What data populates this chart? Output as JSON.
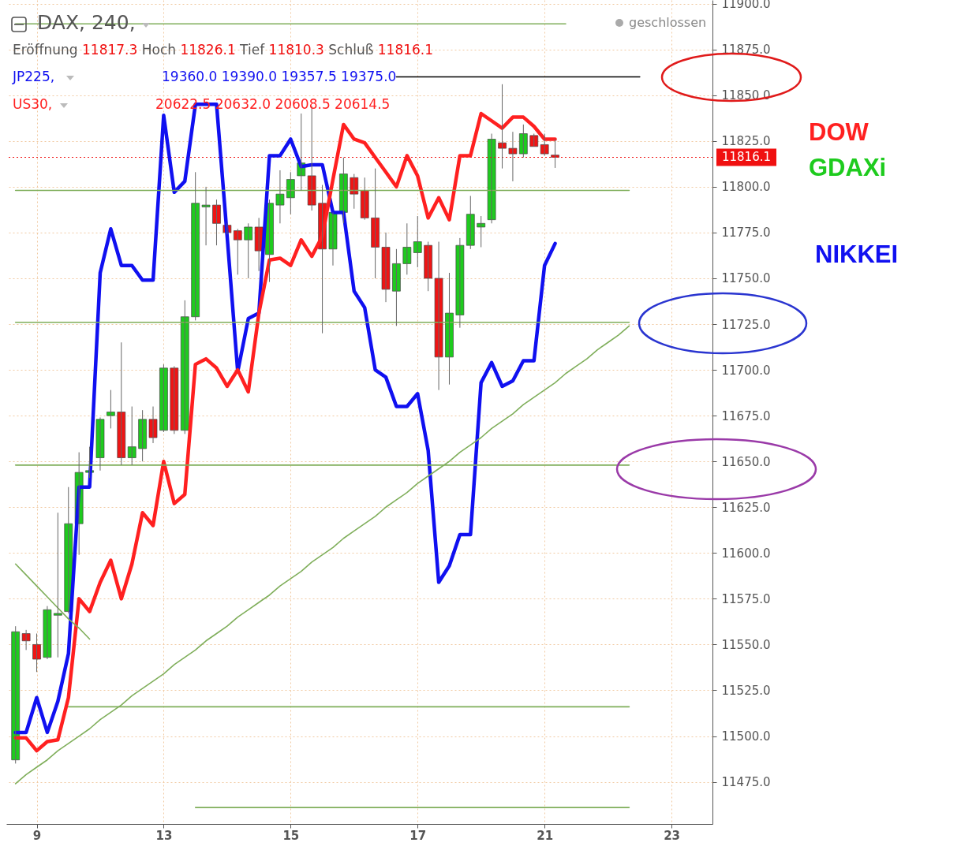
{
  "chart_data": {
    "type": "candlestick",
    "title": "DAX, 240,",
    "categories": [
      null,
      null,
      "9",
      null,
      null,
      null,
      null,
      null,
      null,
      null,
      null,
      null,
      null,
      null,
      "13",
      null,
      null,
      null,
      null,
      null,
      null,
      null,
      null,
      null,
      null,
      null,
      "15",
      null,
      null,
      null,
      null,
      null,
      null,
      null,
      null,
      null,
      null,
      null,
      "17",
      null,
      null,
      null,
      null,
      null,
      null,
      null,
      null,
      null,
      null,
      null,
      "21",
      null,
      null,
      null,
      null,
      null,
      null,
      null,
      null,
      null,
      null,
      null,
      "23",
      null,
      null,
      null
    ],
    "ohlc": [
      [
        11487,
        11560,
        11485,
        11557
      ],
      [
        11556,
        11558,
        11547,
        11552
      ],
      [
        11550,
        11556,
        11535,
        11542
      ],
      [
        11543,
        11571,
        11542,
        11569
      ],
      [
        11566,
        11622,
        11543,
        11567
      ],
      [
        11568,
        11636,
        11567,
        11616
      ],
      [
        11616,
        11655,
        11599,
        11644
      ],
      [
        11644,
        11658,
        11641,
        11645
      ],
      [
        11652,
        11674,
        11645,
        11673
      ],
      [
        11675,
        11689,
        11668,
        11677
      ],
      [
        11677,
        11715,
        11648,
        11652
      ],
      [
        11652,
        11680,
        11648,
        11658
      ],
      [
        11657,
        11678,
        11650,
        11673
      ],
      [
        11673,
        11680,
        11660,
        11663
      ],
      [
        11667,
        11703,
        11666,
        11701
      ],
      [
        11701,
        11702,
        11665,
        11667
      ],
      [
        11667,
        11738,
        11665,
        11729
      ],
      [
        11729,
        11808,
        11727,
        11791
      ],
      [
        11789,
        11800,
        11768,
        11790
      ],
      [
        11790,
        11793,
        11768,
        11780
      ],
      [
        11779,
        11780,
        11774,
        11775
      ],
      [
        11776,
        11777,
        11752,
        11771
      ],
      [
        11771,
        11780,
        11750,
        11778
      ],
      [
        11778,
        11783,
        11754,
        11765
      ],
      [
        11763,
        11793,
        11748,
        11791
      ],
      [
        11790,
        11809,
        11780,
        11796
      ],
      [
        11794,
        11808,
        11785,
        11804
      ],
      [
        11806,
        11840,
        11798,
        11813
      ],
      [
        11806,
        11844,
        11787,
        11790
      ],
      [
        11791,
        11801,
        11720,
        11766
      ],
      [
        11766,
        11786,
        11757,
        11786
      ],
      [
        11786,
        11816,
        11780,
        11807
      ],
      [
        11805,
        11807,
        11788,
        11796
      ],
      [
        11798,
        11805,
        11782,
        11783
      ],
      [
        11783,
        11810,
        11750,
        11767
      ],
      [
        11767,
        11775,
        11737,
        11744
      ],
      [
        11743,
        11766,
        11724,
        11758
      ],
      [
        11758,
        11780,
        11752,
        11767
      ],
      [
        11764,
        11784,
        11756,
        11770
      ],
      [
        11768,
        11770,
        11743,
        11750
      ],
      [
        11750,
        11770,
        11689,
        11707
      ],
      [
        11707,
        11753,
        11692,
        11731
      ],
      [
        11730,
        11772,
        11723,
        11768
      ],
      [
        11768,
        11795,
        11766,
        11785
      ],
      [
        11778,
        11784,
        11767,
        11780
      ],
      [
        11782,
        11829,
        11780,
        11826
      ],
      [
        11824,
        11856,
        11810,
        11821
      ],
      [
        11821,
        11830,
        11803,
        11818
      ],
      [
        11818,
        11834,
        11816,
        11829
      ],
      [
        11828,
        11829,
        11822,
        11822
      ],
      [
        11823,
        11829,
        11817,
        11818
      ],
      [
        11817.3,
        11826.1,
        11810.3,
        11816.1
      ],
      null,
      null,
      null,
      null,
      null,
      null,
      null,
      null,
      null,
      null,
      null,
      null,
      null,
      null
    ],
    "series": [
      {
        "name": "JP225,",
        "type": "line",
        "color": "#1010f0",
        "values": [
          11502,
          11502,
          11521,
          11502,
          11519,
          11545,
          11636,
          11636,
          11753,
          11777,
          11757,
          11757,
          11749,
          11749,
          11839,
          11797,
          11803,
          11845,
          11845,
          11845,
          11773,
          11699,
          11728,
          11731,
          11817,
          11817,
          11826,
          11811,
          11812,
          11812,
          11786,
          11786,
          11743,
          11734,
          11700,
          11696,
          11680,
          11680,
          11687,
          11656,
          11584,
          11593,
          11610,
          11610,
          11693,
          11704,
          11691,
          11694,
          11705,
          11705,
          11757,
          11769,
          null,
          null,
          null,
          null,
          null,
          null,
          null,
          null,
          null,
          null,
          null,
          null,
          null,
          null
        ]
      },
      {
        "name": "US30,",
        "type": "line",
        "color": "#ff2020",
        "values": [
          11499,
          11499,
          11492,
          11497,
          11498,
          11521,
          11575,
          11568,
          11584,
          11596,
          11575,
          11594,
          11622,
          11615,
          11650,
          11627,
          11632,
          11703,
          11706,
          11701,
          11691,
          11700,
          11688,
          11731,
          11760,
          11761,
          11757,
          11771,
          11762,
          11773,
          11804,
          11834,
          11826,
          11824,
          11816,
          11808,
          11800,
          11817,
          11806,
          11783,
          11794,
          11782,
          11817,
          11817,
          11840,
          11836,
          11832,
          11838,
          11838,
          11833,
          11826,
          11826,
          null,
          null,
          null,
          null,
          null,
          null,
          null,
          null,
          null,
          null,
          null,
          null,
          null,
          null
        ]
      },
      {
        "type": "line",
        "color": "#7fae5a",
        "values": [
          11889,
          11889,
          11889,
          11889,
          11889,
          11889,
          11889,
          11889,
          11889,
          11889,
          11889,
          11889,
          11889,
          11889,
          11889,
          11889,
          11889,
          11889,
          11889,
          11889,
          11889,
          11889,
          11889,
          11889,
          11889,
          11889,
          11889,
          11889,
          11889,
          11889,
          11889,
          11889,
          11889,
          11889,
          11889,
          11889,
          11889,
          11889,
          11889,
          11889,
          11889,
          11889,
          11889,
          11889,
          11889,
          11889,
          11889,
          11889,
          11889,
          11889,
          11889,
          11889,
          11889,
          null,
          null,
          null,
          null,
          null,
          null,
          null,
          null,
          null,
          null,
          null,
          null,
          null
        ]
      },
      {
        "type": "line",
        "color": "#000000",
        "values": [
          null,
          null,
          null,
          null,
          null,
          null,
          null,
          null,
          null,
          null,
          null,
          null,
          null,
          null,
          null,
          null,
          null,
          null,
          null,
          null,
          null,
          null,
          null,
          null,
          null,
          null,
          null,
          null,
          null,
          null,
          null,
          null,
          null,
          null,
          null,
          null,
          11860,
          11860,
          11860,
          11860,
          11860,
          11860,
          11860,
          11860,
          11860,
          11860,
          11860,
          11860,
          11860,
          11860,
          11860,
          11860,
          11860,
          11860,
          11860,
          11860,
          11860,
          11860,
          11860,
          11860,
          null,
          null,
          null,
          null,
          null,
          null
        ]
      },
      {
        "type": "line",
        "color": "#7fae5a",
        "values": [
          11798,
          11798,
          11798,
          11798,
          11798,
          11798,
          11798,
          11798,
          11798,
          11798,
          11798,
          11798,
          11798,
          11798,
          11798,
          11798,
          11798,
          11798,
          11798,
          11798,
          11798,
          11798,
          11798,
          11798,
          11798,
          11798,
          11798,
          11798,
          11798,
          11798,
          11798,
          11798,
          11798,
          11798,
          11798,
          11798,
          11798,
          11798,
          11798,
          11798,
          11798,
          11798,
          11798,
          11798,
          11798,
          11798,
          11798,
          11798,
          11798,
          11798,
          11798,
          11798,
          11798,
          11798,
          11798,
          11798,
          11798,
          11798,
          11798,
          null,
          null,
          null,
          null,
          null,
          null,
          null
        ]
      },
      {
        "type": "line",
        "color": "#7fae5a",
        "values": [
          11726,
          11726,
          11726,
          11726,
          11726,
          11726,
          11726,
          11726,
          11726,
          11726,
          11726,
          11726,
          11726,
          11726,
          11726,
          11726,
          11726,
          11726,
          11726,
          11726,
          11726,
          11726,
          11726,
          11726,
          11726,
          11726,
          11726,
          11726,
          11726,
          11726,
          11726,
          11726,
          11726,
          11726,
          11726,
          11726,
          11726,
          11726,
          11726,
          11726,
          11726,
          11726,
          11726,
          11726,
          11726,
          11726,
          11726,
          11726,
          11726,
          11726,
          11726,
          11726,
          11726,
          11726,
          11726,
          11726,
          11726,
          11726,
          11726,
          null,
          null,
          null,
          null,
          null,
          null,
          null
        ]
      },
      {
        "type": "line",
        "color": "#7fae5a",
        "values": [
          11648,
          11648,
          11648,
          11648,
          11648,
          11648,
          11648,
          11648,
          11648,
          11648,
          11648,
          11648,
          11648,
          11648,
          11648,
          11648,
          11648,
          11648,
          11648,
          11648,
          11648,
          11648,
          11648,
          11648,
          11648,
          11648,
          11648,
          11648,
          11648,
          11648,
          11648,
          11648,
          11648,
          11648,
          11648,
          11648,
          11648,
          11648,
          11648,
          11648,
          11648,
          11648,
          11648,
          11648,
          11648,
          11648,
          11648,
          11648,
          11648,
          11648,
          11648,
          11648,
          11648,
          11648,
          11648,
          11648,
          11648,
          11648,
          11648,
          null,
          null,
          null,
          null,
          null,
          null,
          null
        ]
      },
      {
        "type": "line",
        "color": "#7fae5a",
        "values": [
          null,
          null,
          null,
          null,
          null,
          11516,
          11516,
          11516,
          11516,
          11516,
          11516,
          11516,
          11516,
          11516,
          11516,
          11516,
          11516,
          11516,
          11516,
          11516,
          11516,
          11516,
          11516,
          11516,
          11516,
          11516,
          11516,
          11516,
          11516,
          11516,
          11516,
          11516,
          11516,
          11516,
          11516,
          11516,
          11516,
          11516,
          11516,
          11516,
          11516,
          11516,
          11516,
          11516,
          11516,
          11516,
          11516,
          11516,
          11516,
          11516,
          11516,
          11516,
          11516,
          11516,
          11516,
          11516,
          11516,
          11516,
          11516,
          null,
          null,
          null,
          null,
          null,
          null,
          null
        ]
      },
      {
        "type": "line",
        "color": "#7fae5a",
        "values": [
          null,
          null,
          null,
          null,
          null,
          null,
          null,
          null,
          null,
          null,
          null,
          null,
          null,
          null,
          null,
          null,
          null,
          11461,
          11461,
          11461,
          11461,
          11461,
          11461,
          11461,
          11461,
          11461,
          11461,
          11461,
          11461,
          11461,
          11461,
          11461,
          11461,
          11461,
          11461,
          11461,
          11461,
          11461,
          11461,
          11461,
          11461,
          11461,
          11461,
          11461,
          11461,
          11461,
          11461,
          11461,
          11461,
          11461,
          11461,
          11461,
          11461,
          11461,
          11461,
          11461,
          11461,
          11461,
          11461,
          null,
          null,
          null,
          null,
          null,
          null,
          null
        ]
      },
      {
        "type": "line",
        "color": "#7fae5a",
        "values": [
          11474,
          11479,
          11483,
          11487,
          11492,
          11496,
          11500,
          11504,
          11509,
          11513,
          11517,
          11522,
          11526,
          11530,
          11534,
          11539,
          11543,
          11547,
          11552,
          11556,
          11560,
          11565,
          11569,
          11573,
          11577,
          11582,
          11586,
          11590,
          11595,
          11599,
          11603,
          11608,
          11612,
          11616,
          11620,
          11625,
          11629,
          11633,
          11638,
          11642,
          11646,
          11650,
          11655,
          11659,
          11663,
          11668,
          11672,
          11676,
          11681,
          11685,
          11689,
          11693,
          11698,
          11702,
          11706,
          11711,
          11715,
          11719,
          11724,
          null,
          null,
          null,
          null,
          null,
          null,
          null
        ]
      },
      {
        "type": "line",
        "color": "#7fae5a",
        "values": [
          11594,
          11588,
          11582,
          11576,
          11570,
          11564,
          11559,
          11553,
          null,
          null,
          null,
          null,
          null,
          null,
          null,
          null,
          null,
          null,
          null,
          null,
          null,
          null,
          null,
          null,
          null,
          null,
          null,
          null,
          null,
          null,
          null,
          null,
          null,
          null,
          null,
          null,
          null,
          null,
          null,
          null,
          null,
          null,
          null,
          null,
          null,
          null,
          null,
          null,
          null,
          null,
          null,
          null,
          null,
          null,
          null,
          null,
          null,
          null,
          null,
          null,
          null,
          null,
          null,
          null,
          null,
          null
        ]
      }
    ],
    "ref_lines": [
      {
        "axis": "y",
        "value": 11816.1,
        "label": "11816.1",
        "color": "#f01010",
        "line_style": "dotted"
      }
    ],
    "annotations": [
      "Eröffnung 11817.3 Hoch 11826.1 Tief 11810.3 Schluß 11816.1",
      "19360.0 19390.0 19357.5 19375.0",
      "20622.5 20632.0 20608.5 20614.5",
      "geschlossen",
      "DOW",
      "GDAXi",
      "NIKKEI"
    ],
    "ylim": [
      11452,
      11902
    ],
    "yticks": [
      {
        "value": 11475,
        "label": "11475.0"
      },
      {
        "value": 11500,
        "label": "11500.0"
      },
      {
        "value": 11525,
        "label": "11525.0"
      },
      {
        "value": 11550,
        "label": "11550.0"
      },
      {
        "value": 11575,
        "label": "11575.0"
      },
      {
        "value": 11600,
        "label": "11600.0"
      },
      {
        "value": 11625,
        "label": "11625.0"
      },
      {
        "value": 11650,
        "label": "11650.0"
      },
      {
        "value": 11675,
        "label": "11675.0"
      },
      {
        "value": 11700,
        "label": "11700.0"
      },
      {
        "value": 11725,
        "label": "11725.0"
      },
      {
        "value": 11750,
        "label": "11750.0"
      },
      {
        "value": 11775,
        "label": "11775.0"
      },
      {
        "value": 11800,
        "label": "11800.0"
      },
      {
        "value": 11825,
        "label": "11825.0"
      },
      {
        "value": 11850,
        "label": "11850.0"
      },
      {
        "value": 11875,
        "label": "11875.0"
      },
      {
        "value": 11900,
        "label": "11900.0"
      }
    ],
    "grid": true,
    "legend": "top left"
  }
}
